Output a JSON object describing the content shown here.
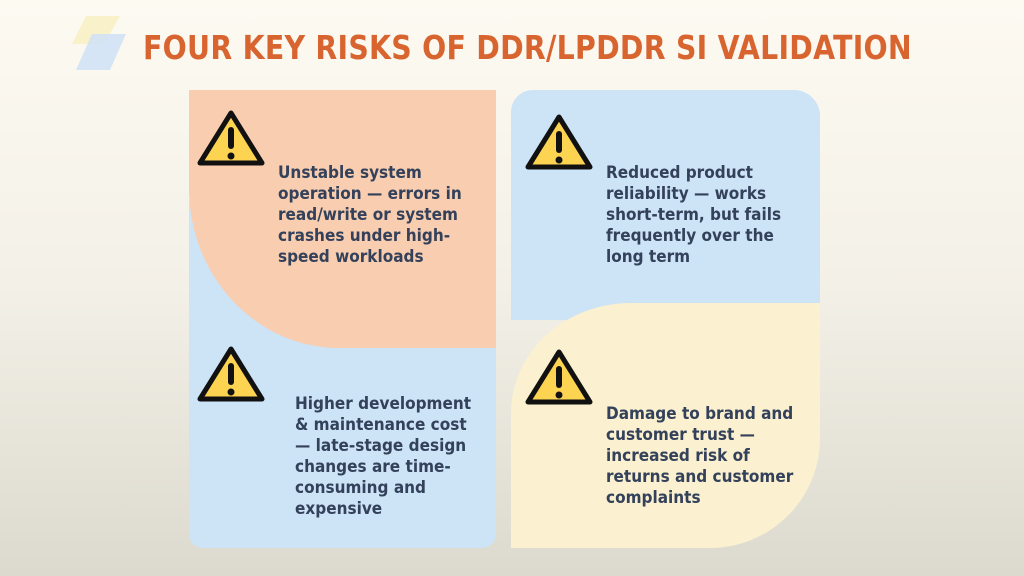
{
  "title": "FOUR KEY RISKS OF DDR/LPDDR SI VALIDATION",
  "colors": {
    "title": "#d8652f",
    "text": "#33415a",
    "orange_panel": "#f9cdb0",
    "blue_panel": "#cde3f6",
    "yellow_panel": "#fbf0cf",
    "warning_fill": "#fdd352"
  },
  "risks": [
    {
      "icon": "warning-icon",
      "lines": [
        "Unstable system",
        "operation — errors in",
        "read/write or system",
        "crashes under high-",
        "speed workloads"
      ]
    },
    {
      "icon": "warning-icon",
      "lines": [
        "Reduced product",
        "reliability — works",
        "short-term, but fails",
        "frequently over the",
        "long term"
      ]
    },
    {
      "icon": "warning-icon",
      "lines": [
        "Higher development",
        "& maintenance cost",
        "— late-stage design",
        "changes are time-",
        "consuming and",
        "expensive"
      ]
    },
    {
      "icon": "warning-icon",
      "lines": [
        "Damage to brand and",
        "customer trust —",
        "increased risk of",
        "returns and customer",
        "complaints"
      ]
    }
  ]
}
